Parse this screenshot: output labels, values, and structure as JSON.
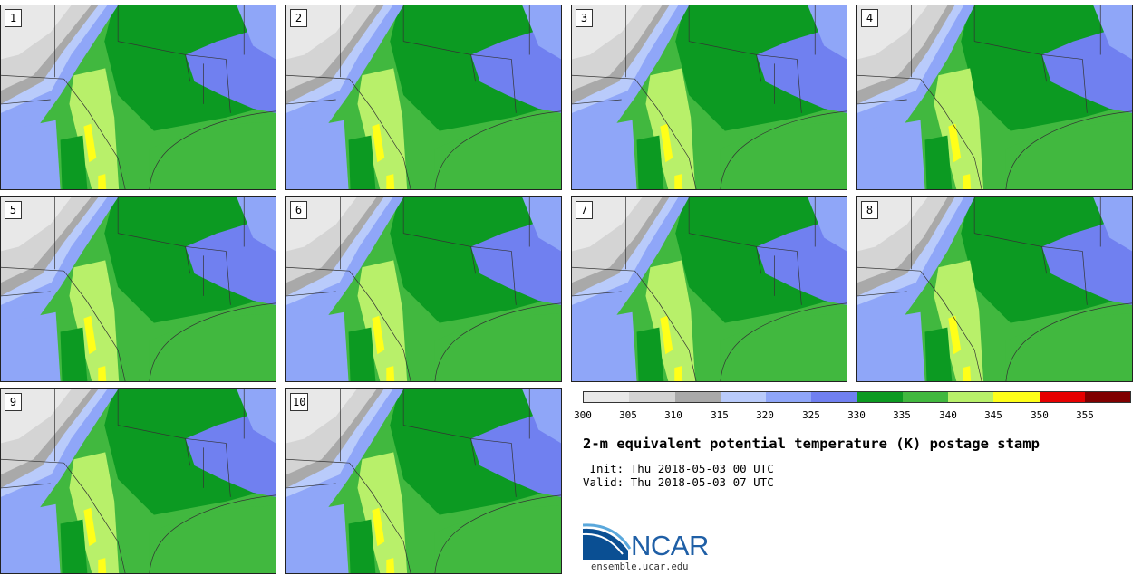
{
  "colors": {
    "bands": [
      "#e8e8e8",
      "#d4d4d4",
      "#a9a9a9",
      "#b9cbfb",
      "#8fa6f8",
      "#7080f0",
      "#0c9a22",
      "#41b83f",
      "#b8f06a",
      "#ffff19",
      "#e60000",
      "#800000"
    ]
  },
  "panels": [
    {
      "label": "1"
    },
    {
      "label": "2"
    },
    {
      "label": "3"
    },
    {
      "label": "4"
    },
    {
      "label": "5"
    },
    {
      "label": "6"
    },
    {
      "label": "7"
    },
    {
      "label": "8"
    },
    {
      "label": "9"
    },
    {
      "label": "10"
    }
  ],
  "colorbar": {
    "ticks": [
      "300",
      "305",
      "310",
      "315",
      "320",
      "325",
      "330",
      "335",
      "340",
      "345",
      "350",
      "355"
    ]
  },
  "title": "2-m equivalent potential temperature (K) postage stamp",
  "init": " Init: Thu 2018-05-03 00 UTC",
  "valid": "Valid: Thu 2018-05-03 07 UTC",
  "logo": {
    "word": "NCAR",
    "site": "ensemble.ucar.edu"
  }
}
